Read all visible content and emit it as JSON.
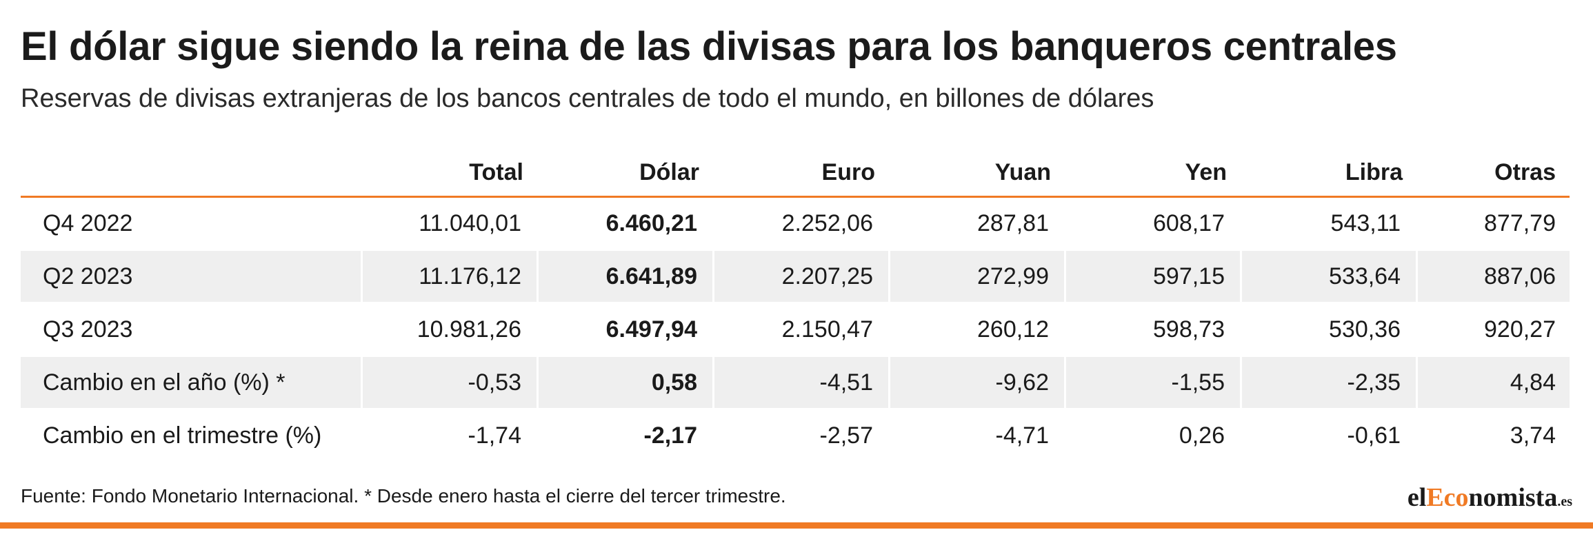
{
  "title": "El dólar sigue siendo la reina de las divisas para los banqueros centrales",
  "subtitle": "Reservas de divisas extranjeras de los bancos centrales de todo el mundo, en billones de dólares",
  "source": "Fuente: Fondo Monetario Internacional. * Desde enero hasta el cierre del tercer trimestre.",
  "logo": {
    "part1": "el",
    "part2": "Eco",
    "part3": "nomista",
    "tld": ".es"
  },
  "colors": {
    "accent": "#f07a24",
    "row_shade": "#efefef",
    "text": "#1a1a1a"
  },
  "chart_data": {
    "type": "table",
    "title": "El dólar sigue siendo la reina de las divisas para los banqueros centrales",
    "subtitle": "Reservas de divisas extranjeras de los bancos centrales de todo el mundo, en billones de dólares",
    "columns": [
      "",
      "Total",
      "Dólar",
      "Euro",
      "Yuan",
      "Yen",
      "Libra",
      "Otras"
    ],
    "highlight_column": "Dólar",
    "rows": [
      {
        "label": "Q4 2022",
        "values": [
          "11.040,01",
          "6.460,21",
          "2.252,06",
          "287,81",
          "608,17",
          "543,11",
          "877,79"
        ]
      },
      {
        "label": "Q2 2023",
        "values": [
          "11.176,12",
          "6.641,89",
          "2.207,25",
          "272,99",
          "597,15",
          "533,64",
          "887,06"
        ]
      },
      {
        "label": "Q3 2023",
        "values": [
          "10.981,26",
          "6.497,94",
          "2.150,47",
          "260,12",
          "598,73",
          "530,36",
          "920,27"
        ]
      },
      {
        "label": "Cambio en el año (%) *",
        "values": [
          "-0,53",
          "0,58",
          "-4,51",
          "-9,62",
          "-1,55",
          "-2,35",
          "4,84"
        ]
      },
      {
        "label": "Cambio en el trimestre (%)",
        "values": [
          "-1,74",
          "-2,17",
          "-2,57",
          "-4,71",
          "0,26",
          "-0,61",
          "3,74"
        ]
      }
    ]
  }
}
